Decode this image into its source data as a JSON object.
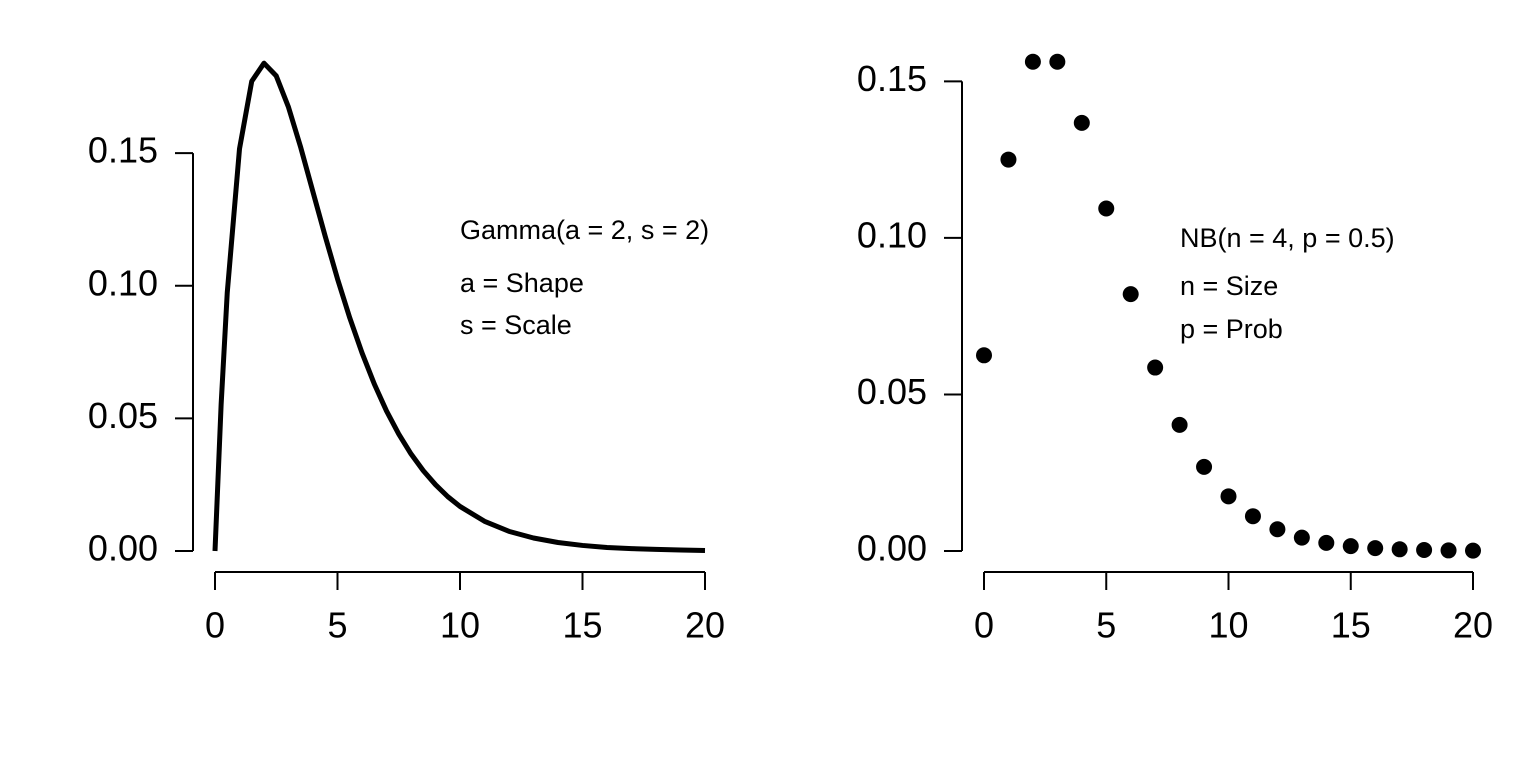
{
  "chart_data": [
    {
      "type": "line",
      "color": "#000000",
      "annotations": [
        "Gamma(a = 2, s = 2)",
        "a = Shape",
        "s = Scale"
      ],
      "x": [
        0,
        0.25,
        0.5,
        1,
        1.5,
        2,
        2.5,
        3,
        3.5,
        4,
        4.5,
        5,
        5.5,
        6,
        6.5,
        7,
        7.5,
        8,
        8.5,
        9,
        9.5,
        10,
        11,
        12,
        13,
        14,
        15,
        16,
        17,
        18,
        19,
        20
      ],
      "values": [
        0,
        0.0552,
        0.0974,
        0.1516,
        0.1771,
        0.1839,
        0.1791,
        0.1673,
        0.1521,
        0.1353,
        0.1186,
        0.1026,
        0.0879,
        0.0747,
        0.063,
        0.0528,
        0.0441,
        0.0366,
        0.0303,
        0.025,
        0.0205,
        0.0168,
        0.0112,
        0.0074,
        0.0049,
        0.0032,
        0.0021,
        0.0013,
        0.0009,
        0.0006,
        0.0004,
        0.0002
      ],
      "xlim": [
        0,
        20
      ],
      "xticks": [
        0,
        5,
        10,
        15,
        20
      ],
      "ylim": [
        0,
        0.19
      ],
      "yticks": [
        {
          "value": 0,
          "label": "0.00"
        },
        0.05,
        {
          "value": 0.1,
          "label": "0.10"
        },
        0.15
      ]
    },
    {
      "type": "scatter",
      "color": "#000000",
      "annotations": [
        "NB(n = 4, p = 0.5)",
        "n = Size",
        "p = Prob"
      ],
      "x": [
        0,
        1,
        2,
        3,
        4,
        5,
        6,
        7,
        8,
        9,
        10,
        11,
        12,
        13,
        14,
        15,
        16,
        17,
        18,
        19,
        20
      ],
      "values": [
        0.0625,
        0.125,
        0.15625,
        0.15625,
        0.13672,
        0.10938,
        0.08203,
        0.05859,
        0.04028,
        0.02686,
        0.01746,
        0.01111,
        0.00694,
        0.00427,
        0.00259,
        0.00156,
        0.00092,
        0.00054,
        0.00032,
        0.00018,
        0.00011
      ],
      "xlim": [
        0,
        20
      ],
      "xticks": [
        0,
        5,
        10,
        15,
        20
      ],
      "ylim": [
        0,
        0.16
      ],
      "yticks": [
        {
          "value": 0,
          "label": "0.00"
        },
        0.05,
        {
          "value": 0.1,
          "label": "0.10"
        },
        0.15
      ]
    }
  ]
}
